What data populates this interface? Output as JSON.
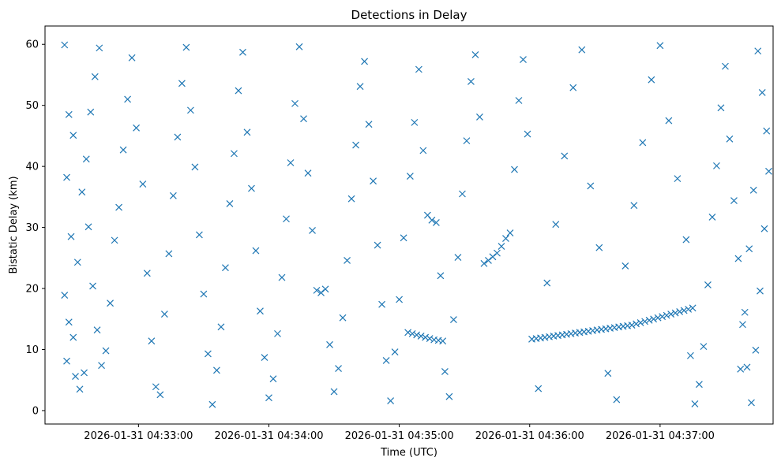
{
  "chart_data": {
    "type": "scatter",
    "title": "Detections in Delay",
    "xlabel": "Time (UTC)",
    "ylabel": "Bistatic Delay (km)",
    "x_unit": "time",
    "x_range": [
      "2026-01-31 04:32:17",
      "2026-01-31 04:37:52"
    ],
    "ylim": [
      -2.2,
      63.0
    ],
    "x_ticks": [
      {
        "value": "2026-01-31 04:33:00",
        "label": "2026-01-31 04:33:00"
      },
      {
        "value": "2026-01-31 04:34:00",
        "label": "2026-01-31 04:34:00"
      },
      {
        "value": "2026-01-31 04:35:00",
        "label": "2026-01-31 04:35:00"
      },
      {
        "value": "2026-01-31 04:36:00",
        "label": "2026-01-31 04:36:00"
      },
      {
        "value": "2026-01-31 04:37:00",
        "label": "2026-01-31 04:37:00"
      }
    ],
    "y_ticks": [
      0,
      10,
      20,
      30,
      40,
      50,
      60
    ],
    "grid": false,
    "legend": "none",
    "marker": "x",
    "color": "#1f77b4",
    "series": [
      {
        "points": [
          [
            "04:32:26",
            59.9
          ],
          [
            "04:32:28",
            48.5
          ],
          [
            "04:32:30",
            45.1
          ],
          [
            "04:32:27",
            38.2
          ],
          [
            "04:32:29",
            28.5
          ],
          [
            "04:32:26",
            18.9
          ],
          [
            "04:32:28",
            14.5
          ],
          [
            "04:32:30",
            12.0
          ],
          [
            "04:32:27",
            8.1
          ],
          [
            "04:32:31",
            5.6
          ],
          [
            "04:32:33",
            3.5
          ],
          [
            "04:32:35",
            6.2
          ],
          [
            "04:32:32",
            24.3
          ],
          [
            "04:32:34",
            35.8
          ],
          [
            "04:32:36",
            41.2
          ],
          [
            "04:32:38",
            48.9
          ],
          [
            "04:32:40",
            54.7
          ],
          [
            "04:32:42",
            59.4
          ],
          [
            "04:32:37",
            30.1
          ],
          [
            "04:32:39",
            20.4
          ],
          [
            "04:32:41",
            13.2
          ],
          [
            "04:32:43",
            7.4
          ],
          [
            "04:32:45",
            9.8
          ],
          [
            "04:32:47",
            17.6
          ],
          [
            "04:32:49",
            27.9
          ],
          [
            "04:32:51",
            33.3
          ],
          [
            "04:32:53",
            42.7
          ],
          [
            "04:32:55",
            51.0
          ],
          [
            "04:32:57",
            57.8
          ],
          [
            "04:32:59",
            46.3
          ],
          [
            "04:33:02",
            37.1
          ],
          [
            "04:33:04",
            22.5
          ],
          [
            "04:33:06",
            11.4
          ],
          [
            "04:33:08",
            3.9
          ],
          [
            "04:33:10",
            2.6
          ],
          [
            "04:33:12",
            15.8
          ],
          [
            "04:33:14",
            25.7
          ],
          [
            "04:33:16",
            35.2
          ],
          [
            "04:33:18",
            44.8
          ],
          [
            "04:33:20",
            53.6
          ],
          [
            "04:33:22",
            59.5
          ],
          [
            "04:33:24",
            49.2
          ],
          [
            "04:33:26",
            39.9
          ],
          [
            "04:33:28",
            28.8
          ],
          [
            "04:33:30",
            19.1
          ],
          [
            "04:33:32",
            9.3
          ],
          [
            "04:33:34",
            1.0
          ],
          [
            "04:33:36",
            6.6
          ],
          [
            "04:33:38",
            13.7
          ],
          [
            "04:33:40",
            23.4
          ],
          [
            "04:33:42",
            33.9
          ],
          [
            "04:33:44",
            42.1
          ],
          [
            "04:33:46",
            52.4
          ],
          [
            "04:33:48",
            58.7
          ],
          [
            "04:33:50",
            45.6
          ],
          [
            "04:33:52",
            36.4
          ],
          [
            "04:33:54",
            26.2
          ],
          [
            "04:33:56",
            16.3
          ],
          [
            "04:33:58",
            8.7
          ],
          [
            "04:34:00",
            2.1
          ],
          [
            "04:34:02",
            5.2
          ],
          [
            "04:34:04",
            12.6
          ],
          [
            "04:34:06",
            21.8
          ],
          [
            "04:34:08",
            31.4
          ],
          [
            "04:34:10",
            40.6
          ],
          [
            "04:34:12",
            50.3
          ],
          [
            "04:34:14",
            59.6
          ],
          [
            "04:34:16",
            47.8
          ],
          [
            "04:34:18",
            38.9
          ],
          [
            "04:34:20",
            29.5
          ],
          [
            "04:34:22",
            19.7
          ],
          [
            "04:34:24",
            19.3
          ],
          [
            "04:34:26",
            19.9
          ],
          [
            "04:34:28",
            10.8
          ],
          [
            "04:34:30",
            3.1
          ],
          [
            "04:34:32",
            6.9
          ],
          [
            "04:34:34",
            15.2
          ],
          [
            "04:34:36",
            24.6
          ],
          [
            "04:34:38",
            34.7
          ],
          [
            "04:34:40",
            43.5
          ],
          [
            "04:34:42",
            53.1
          ],
          [
            "04:34:44",
            57.2
          ],
          [
            "04:34:46",
            46.9
          ],
          [
            "04:34:48",
            37.6
          ],
          [
            "04:34:50",
            27.1
          ],
          [
            "04:34:52",
            17.4
          ],
          [
            "04:34:54",
            8.2
          ],
          [
            "04:34:56",
            1.6
          ],
          [
            "04:34:58",
            9.6
          ],
          [
            "04:35:00",
            18.2
          ],
          [
            "04:35:02",
            28.3
          ],
          [
            "04:35:04",
            12.8
          ],
          [
            "04:35:06",
            12.6
          ],
          [
            "04:35:08",
            12.4
          ],
          [
            "04:35:10",
            12.2
          ],
          [
            "04:35:12",
            12.0
          ],
          [
            "04:35:14",
            11.8
          ],
          [
            "04:35:16",
            11.6
          ],
          [
            "04:35:18",
            11.5
          ],
          [
            "04:35:20",
            11.4
          ],
          [
            "04:35:05",
            38.4
          ],
          [
            "04:35:07",
            47.2
          ],
          [
            "04:35:09",
            55.9
          ],
          [
            "04:35:11",
            42.6
          ],
          [
            "04:35:13",
            32.0
          ],
          [
            "04:35:15",
            31.2
          ],
          [
            "04:35:17",
            30.8
          ],
          [
            "04:35:19",
            22.1
          ],
          [
            "04:35:21",
            6.4
          ],
          [
            "04:35:23",
            2.3
          ],
          [
            "04:35:25",
            14.9
          ],
          [
            "04:35:27",
            25.1
          ],
          [
            "04:35:29",
            35.5
          ],
          [
            "04:35:31",
            44.2
          ],
          [
            "04:35:33",
            53.9
          ],
          [
            "04:35:35",
            58.3
          ],
          [
            "04:35:37",
            48.1
          ],
          [
            "04:35:39",
            24.1
          ],
          [
            "04:35:41",
            24.6
          ],
          [
            "04:35:43",
            25.2
          ],
          [
            "04:35:45",
            25.8
          ],
          [
            "04:35:47",
            26.9
          ],
          [
            "04:35:49",
            28.2
          ],
          [
            "04:35:51",
            29.1
          ],
          [
            "04:35:53",
            39.5
          ],
          [
            "04:35:55",
            50.8
          ],
          [
            "04:35:57",
            57.5
          ],
          [
            "04:35:59",
            45.3
          ],
          [
            "04:36:01",
            11.7
          ],
          [
            "04:36:03",
            11.8
          ],
          [
            "04:36:05",
            11.9
          ],
          [
            "04:36:07",
            12.0
          ],
          [
            "04:36:09",
            12.1
          ],
          [
            "04:36:11",
            12.2
          ],
          [
            "04:36:13",
            12.3
          ],
          [
            "04:36:15",
            12.4
          ],
          [
            "04:36:17",
            12.5
          ],
          [
            "04:36:19",
            12.6
          ],
          [
            "04:36:21",
            12.7
          ],
          [
            "04:36:23",
            12.8
          ],
          [
            "04:36:25",
            12.9
          ],
          [
            "04:36:27",
            13.0
          ],
          [
            "04:36:29",
            13.1
          ],
          [
            "04:36:31",
            13.2
          ],
          [
            "04:36:33",
            13.3
          ],
          [
            "04:36:35",
            13.4
          ],
          [
            "04:36:37",
            13.5
          ],
          [
            "04:36:39",
            13.6
          ],
          [
            "04:36:41",
            13.7
          ],
          [
            "04:36:43",
            13.8
          ],
          [
            "04:36:45",
            13.9
          ],
          [
            "04:36:47",
            14.0
          ],
          [
            "04:36:49",
            14.2
          ],
          [
            "04:36:51",
            14.4
          ],
          [
            "04:36:53",
            14.6
          ],
          [
            "04:36:55",
            14.8
          ],
          [
            "04:36:57",
            15.0
          ],
          [
            "04:36:59",
            15.2
          ],
          [
            "04:37:01",
            15.4
          ],
          [
            "04:37:03",
            15.6
          ],
          [
            "04:37:05",
            15.8
          ],
          [
            "04:37:07",
            16.0
          ],
          [
            "04:37:09",
            16.2
          ],
          [
            "04:37:11",
            16.4
          ],
          [
            "04:37:13",
            16.6
          ],
          [
            "04:37:15",
            16.8
          ],
          [
            "04:36:04",
            3.6
          ],
          [
            "04:36:08",
            20.9
          ],
          [
            "04:36:12",
            30.5
          ],
          [
            "04:36:16",
            41.7
          ],
          [
            "04:36:20",
            52.9
          ],
          [
            "04:36:24",
            59.1
          ],
          [
            "04:36:28",
            36.8
          ],
          [
            "04:36:32",
            26.7
          ],
          [
            "04:36:36",
            6.1
          ],
          [
            "04:36:40",
            1.8
          ],
          [
            "04:36:44",
            23.7
          ],
          [
            "04:36:48",
            33.6
          ],
          [
            "04:36:52",
            43.9
          ],
          [
            "04:36:56",
            54.2
          ],
          [
            "04:37:00",
            59.8
          ],
          [
            "04:37:04",
            47.5
          ],
          [
            "04:37:08",
            38.0
          ],
          [
            "04:37:12",
            28.0
          ],
          [
            "04:37:14",
            9.0
          ],
          [
            "04:37:16",
            1.1
          ],
          [
            "04:37:18",
            4.3
          ],
          [
            "04:37:20",
            10.5
          ],
          [
            "04:37:22",
            20.6
          ],
          [
            "04:37:24",
            31.7
          ],
          [
            "04:37:26",
            40.1
          ],
          [
            "04:37:28",
            49.6
          ],
          [
            "04:37:30",
            56.4
          ],
          [
            "04:37:32",
            44.5
          ],
          [
            "04:37:34",
            34.4
          ],
          [
            "04:37:36",
            24.9
          ],
          [
            "04:37:38",
            14.1
          ],
          [
            "04:37:40",
            7.1
          ],
          [
            "04:37:42",
            1.3
          ],
          [
            "04:37:44",
            9.9
          ],
          [
            "04:37:46",
            19.6
          ],
          [
            "04:37:48",
            29.8
          ],
          [
            "04:37:50",
            39.2
          ],
          [
            "04:37:49",
            45.8
          ],
          [
            "04:37:47",
            52.1
          ],
          [
            "04:37:45",
            58.9
          ],
          [
            "04:37:43",
            36.1
          ],
          [
            "04:37:41",
            26.5
          ],
          [
            "04:37:39",
            16.1
          ],
          [
            "04:37:37",
            6.8
          ]
        ]
      }
    ]
  }
}
